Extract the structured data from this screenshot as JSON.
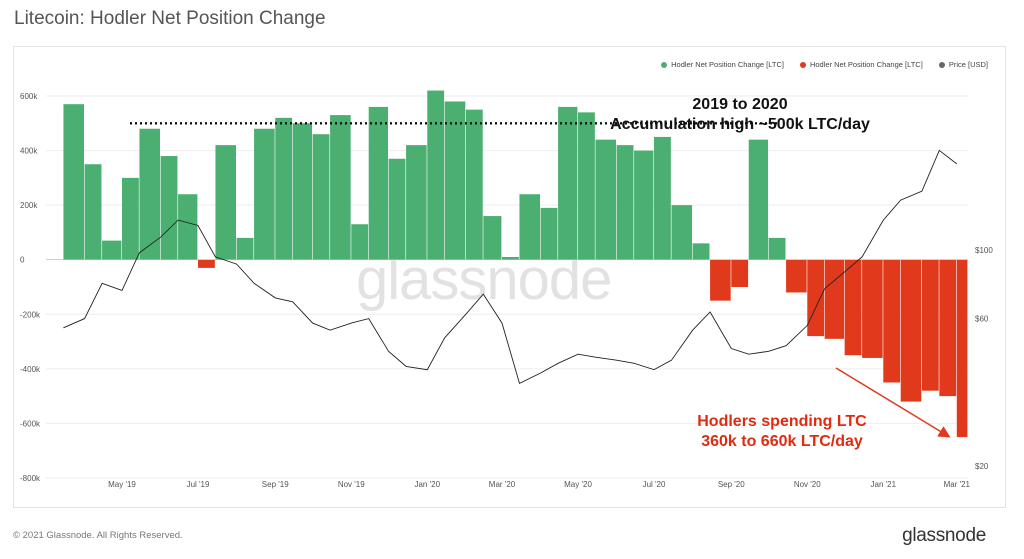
{
  "title": "Litecoin: Hodler Net Position Change",
  "footer": "© 2021 Glassnode. All Rights Reserved.",
  "brand": "glassnode",
  "watermark": "glassnode",
  "legend": [
    {
      "label": "Hodler Net Position Change [LTC]",
      "color": "#4caf72"
    },
    {
      "label": "Hodler Net Position Change [LTC]",
      "color": "#e0391c"
    },
    {
      "label": "Price [USD]",
      "color": "#666666"
    }
  ],
  "annotations": {
    "top_line1": "2019 to 2020",
    "top_line2": "Accumulation high ~500k LTC/day",
    "bottom_line1": "Hodlers spending LTC",
    "bottom_line2": "360k to 660k LTC/day"
  },
  "chart_data": {
    "type": "bar",
    "title": "Litecoin: Hodler Net Position Change",
    "x_tick_labels": [
      "May '19",
      "Jul '19",
      "Sep '19",
      "Nov '19",
      "Jan '20",
      "Mar '20",
      "May '20",
      "Jul '20",
      "Sep '20",
      "Nov '20",
      "Jan '21",
      "Mar '21"
    ],
    "y_left_ticks": [
      "600k",
      "400k",
      "200k",
      "0",
      "-200k",
      "-400k",
      "-600k",
      "-800k"
    ],
    "y_left_range": [
      -800000,
      600000
    ],
    "y_right_ticks": [
      "$100",
      "$60",
      "$20"
    ],
    "y_right_scale": "log",
    "grid": true,
    "legend_position": "top-right",
    "series": [
      {
        "name": "Hodler Net Position Change [LTC]",
        "unit": "LTC",
        "x": [
          "2019-03-15",
          "2019-04-01",
          "2019-04-15",
          "2019-05-01",
          "2019-05-15",
          "2019-06-01",
          "2019-06-15",
          "2019-07-01",
          "2019-07-15",
          "2019-08-01",
          "2019-08-15",
          "2019-09-01",
          "2019-09-15",
          "2019-10-01",
          "2019-10-15",
          "2019-11-01",
          "2019-11-15",
          "2019-12-01",
          "2019-12-15",
          "2020-01-01",
          "2020-01-15",
          "2020-02-01",
          "2020-02-15",
          "2020-03-01",
          "2020-03-15",
          "2020-04-01",
          "2020-04-15",
          "2020-05-01",
          "2020-05-15",
          "2020-06-01",
          "2020-06-15",
          "2020-07-01",
          "2020-07-15",
          "2020-08-01",
          "2020-08-15",
          "2020-09-01",
          "2020-09-15",
          "2020-10-01",
          "2020-10-15",
          "2020-11-01",
          "2020-11-15",
          "2020-12-01",
          "2020-12-15",
          "2021-01-01",
          "2021-01-15",
          "2021-02-01",
          "2021-02-15",
          "2021-03-01"
        ],
        "values": [
          570000,
          350000,
          70000,
          300000,
          480000,
          380000,
          240000,
          -30000,
          420000,
          80000,
          480000,
          520000,
          500000,
          460000,
          530000,
          130000,
          560000,
          370000,
          420000,
          620000,
          580000,
          550000,
          160000,
          10000,
          240000,
          190000,
          560000,
          540000,
          440000,
          420000,
          400000,
          450000,
          200000,
          60000,
          -150000,
          -100000,
          440000,
          80000,
          -120000,
          -280000,
          -290000,
          -350000,
          -360000,
          -450000,
          -520000,
          -480000,
          -500000,
          -650000
        ]
      },
      {
        "name": "Price [USD]",
        "unit": "USD",
        "x": [
          "2019-03-15",
          "2019-04-01",
          "2019-04-15",
          "2019-05-01",
          "2019-05-15",
          "2019-06-01",
          "2019-06-15",
          "2019-07-01",
          "2019-07-15",
          "2019-08-01",
          "2019-08-15",
          "2019-09-01",
          "2019-09-15",
          "2019-10-01",
          "2019-10-15",
          "2019-11-01",
          "2019-11-15",
          "2019-12-01",
          "2019-12-15",
          "2020-01-01",
          "2020-01-15",
          "2020-02-01",
          "2020-02-15",
          "2020-03-01",
          "2020-03-15",
          "2020-04-01",
          "2020-04-15",
          "2020-05-01",
          "2020-05-15",
          "2020-06-01",
          "2020-06-15",
          "2020-07-01",
          "2020-07-15",
          "2020-08-01",
          "2020-08-15",
          "2020-09-01",
          "2020-09-15",
          "2020-10-01",
          "2020-10-15",
          "2020-11-01",
          "2020-11-15",
          "2020-12-01",
          "2020-12-15",
          "2021-01-01",
          "2021-01-15",
          "2021-02-01",
          "2021-02-15",
          "2021-03-01"
        ],
        "values": [
          56,
          60,
          78,
          74,
          98,
          110,
          125,
          120,
          95,
          90,
          78,
          70,
          68,
          58,
          55,
          58,
          60,
          47,
          42,
          41,
          52,
          62,
          72,
          58,
          37,
          40,
          43,
          46,
          45,
          44,
          43,
          41,
          44,
          55,
          63,
          48,
          46,
          47,
          49,
          57,
          75,
          85,
          95,
          125,
          145,
          155,
          210,
          190
        ]
      }
    ]
  }
}
